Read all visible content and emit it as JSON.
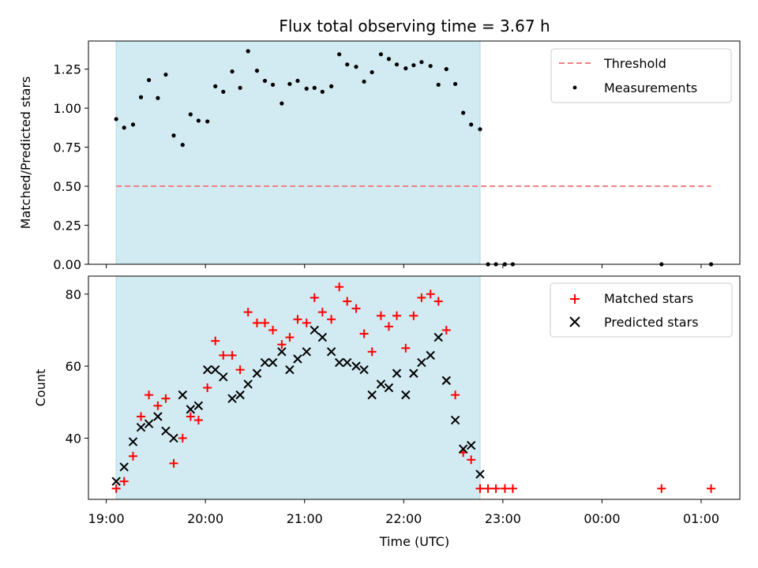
{
  "chart_data": {
    "type": "scatter",
    "title": "Flux total observing time = 3.67 h",
    "xlabel": "Time (UTC)",
    "x_tick_labels": [
      "19:00",
      "20:00",
      "21:00",
      "22:00",
      "23:00",
      "00:00",
      "01:00"
    ],
    "x_tick_hours": [
      19,
      20,
      21,
      22,
      23,
      24,
      25
    ],
    "xlim": [
      18.82,
      25.39
    ],
    "observing_window_hours": [
      19.1,
      22.77
    ],
    "top": {
      "ylabel": "Matched/Predicted stars",
      "ylim": [
        0,
        1.43
      ],
      "y_tick_values": [
        0,
        0.25,
        0.5,
        0.75,
        1.0,
        1.25
      ],
      "y_tick_labels": [
        "0.00",
        "0.25",
        "0.50",
        "0.75",
        "1.00",
        "1.25"
      ],
      "threshold": {
        "name": "Threshold",
        "value": 0.5,
        "x_range": [
          19.1,
          25.1
        ],
        "color": "#f08080"
      },
      "measurements_name": "Measurements",
      "measurements": [
        [
          19.1,
          0.93
        ],
        [
          19.18,
          0.875
        ],
        [
          19.27,
          0.895
        ],
        [
          19.35,
          1.07
        ],
        [
          19.43,
          1.18
        ],
        [
          19.52,
          1.065
        ],
        [
          19.6,
          1.215
        ],
        [
          19.68,
          0.825
        ],
        [
          19.77,
          0.765
        ],
        [
          19.85,
          0.96
        ],
        [
          19.93,
          0.92
        ],
        [
          20.02,
          0.915
        ],
        [
          20.1,
          1.14
        ],
        [
          20.18,
          1.105
        ],
        [
          20.27,
          1.235
        ],
        [
          20.35,
          1.13
        ],
        [
          20.43,
          1.365
        ],
        [
          20.52,
          1.24
        ],
        [
          20.6,
          1.175
        ],
        [
          20.68,
          1.15
        ],
        [
          20.77,
          1.03
        ],
        [
          20.85,
          1.155
        ],
        [
          20.93,
          1.175
        ],
        [
          21.02,
          1.125
        ],
        [
          21.1,
          1.13
        ],
        [
          21.18,
          1.105
        ],
        [
          21.27,
          1.14
        ],
        [
          21.35,
          1.345
        ],
        [
          21.43,
          1.28
        ],
        [
          21.52,
          1.265
        ],
        [
          21.6,
          1.17
        ],
        [
          21.68,
          1.23
        ],
        [
          21.77,
          1.345
        ],
        [
          21.85,
          1.315
        ],
        [
          21.93,
          1.28
        ],
        [
          22.02,
          1.255
        ],
        [
          22.1,
          1.275
        ],
        [
          22.18,
          1.295
        ],
        [
          22.27,
          1.27
        ],
        [
          22.35,
          1.15
        ],
        [
          22.43,
          1.25
        ],
        [
          22.52,
          1.155
        ],
        [
          22.6,
          0.97
        ],
        [
          22.68,
          0.895
        ],
        [
          22.77,
          0.865
        ],
        [
          22.85,
          0.0
        ],
        [
          22.93,
          0.0
        ],
        [
          23.02,
          0.0
        ],
        [
          23.1,
          0.0
        ],
        [
          24.6,
          0.0
        ],
        [
          25.1,
          0.0
        ]
      ]
    },
    "bottom": {
      "ylabel": "Count",
      "ylim": [
        23,
        85
      ],
      "y_tick_values": [
        40,
        60,
        80
      ],
      "y_tick_labels": [
        "40",
        "60",
        "80"
      ],
      "series": [
        {
          "name": "Matched stars",
          "marker": "plus",
          "color": "#ff0000",
          "points": [
            [
              19.1,
              26
            ],
            [
              19.18,
              28
            ],
            [
              19.27,
              35
            ],
            [
              19.35,
              46
            ],
            [
              19.43,
              52
            ],
            [
              19.52,
              49
            ],
            [
              19.6,
              51
            ],
            [
              19.68,
              33
            ],
            [
              19.77,
              40
            ],
            [
              19.85,
              46
            ],
            [
              19.93,
              45
            ],
            [
              20.02,
              54
            ],
            [
              20.1,
              67
            ],
            [
              20.18,
              63
            ],
            [
              20.27,
              63
            ],
            [
              20.35,
              59
            ],
            [
              20.43,
              75
            ],
            [
              20.52,
              72
            ],
            [
              20.6,
              72
            ],
            [
              20.68,
              70
            ],
            [
              20.77,
              66
            ],
            [
              20.85,
              68
            ],
            [
              20.93,
              73
            ],
            [
              21.02,
              72
            ],
            [
              21.1,
              79
            ],
            [
              21.18,
              75
            ],
            [
              21.27,
              73
            ],
            [
              21.35,
              82
            ],
            [
              21.43,
              78
            ],
            [
              21.52,
              76
            ],
            [
              21.6,
              69
            ],
            [
              21.68,
              64
            ],
            [
              21.77,
              74
            ],
            [
              21.85,
              71
            ],
            [
              21.93,
              74
            ],
            [
              22.02,
              65
            ],
            [
              22.1,
              74
            ],
            [
              22.18,
              79
            ],
            [
              22.27,
              80
            ],
            [
              22.35,
              78
            ],
            [
              22.43,
              70
            ],
            [
              22.52,
              52
            ],
            [
              22.6,
              36
            ],
            [
              22.68,
              34
            ],
            [
              22.77,
              26
            ],
            [
              22.85,
              26
            ],
            [
              22.93,
              26
            ],
            [
              23.02,
              26
            ],
            [
              23.1,
              26
            ],
            [
              24.6,
              26
            ],
            [
              25.1,
              26
            ]
          ]
        },
        {
          "name": "Predicted stars",
          "marker": "x",
          "color": "#000000",
          "points": [
            [
              19.1,
              28
            ],
            [
              19.18,
              32
            ],
            [
              19.27,
              39
            ],
            [
              19.35,
              43
            ],
            [
              19.43,
              44
            ],
            [
              19.52,
              46
            ],
            [
              19.6,
              42
            ],
            [
              19.68,
              40
            ],
            [
              19.77,
              52
            ],
            [
              19.85,
              48
            ],
            [
              19.93,
              49
            ],
            [
              20.02,
              59
            ],
            [
              20.1,
              59
            ],
            [
              20.18,
              57
            ],
            [
              20.27,
              51
            ],
            [
              20.35,
              52
            ],
            [
              20.43,
              55
            ],
            [
              20.52,
              58
            ],
            [
              20.6,
              61
            ],
            [
              20.68,
              61
            ],
            [
              20.77,
              64
            ],
            [
              20.85,
              59
            ],
            [
              20.93,
              62
            ],
            [
              21.02,
              64
            ],
            [
              21.1,
              70
            ],
            [
              21.18,
              68
            ],
            [
              21.27,
              64
            ],
            [
              21.35,
              61
            ],
            [
              21.43,
              61
            ],
            [
              21.52,
              60
            ],
            [
              21.6,
              59
            ],
            [
              21.68,
              52
            ],
            [
              21.77,
              55
            ],
            [
              21.85,
              54
            ],
            [
              21.93,
              58
            ],
            [
              22.02,
              52
            ],
            [
              22.1,
              58
            ],
            [
              22.18,
              61
            ],
            [
              22.27,
              63
            ],
            [
              22.35,
              68
            ],
            [
              22.43,
              56
            ],
            [
              22.52,
              45
            ],
            [
              22.6,
              37
            ],
            [
              22.68,
              38
            ],
            [
              22.77,
              30
            ]
          ]
        }
      ]
    },
    "shade_color": "#add8e6",
    "legend_placement": "top-right"
  }
}
